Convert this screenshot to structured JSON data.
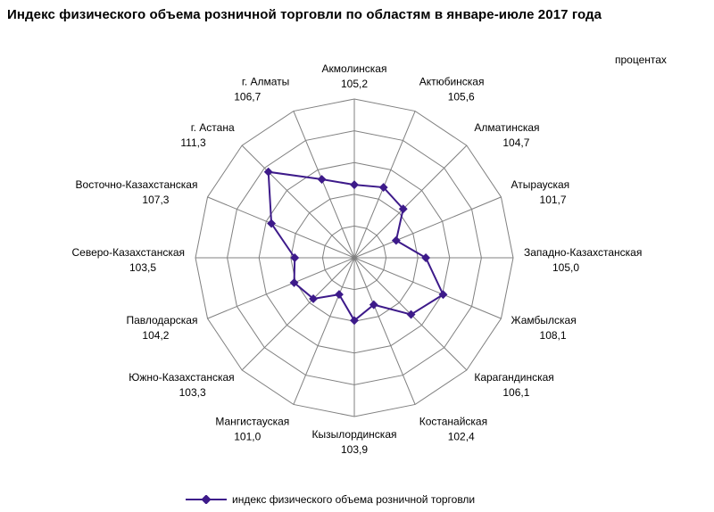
{
  "chart_data": {
    "type": "radar",
    "title": "Индекс физического объема розничной торговли по областям в январе-июле 2017 года",
    "unit": "процентах",
    "series": [
      {
        "name": "индекс физического объема розничной торговли",
        "color": "#3d1a8a",
        "values": [
          105.2,
          105.6,
          104.7,
          101.7,
          105.0,
          108.1,
          106.1,
          102.4,
          103.9,
          101.0,
          103.3,
          104.2,
          103.5,
          107.3,
          111.3,
          106.7
        ]
      }
    ],
    "categories": [
      "Акмолинская",
      "Актюбинская",
      "Алматинская",
      "Атырауская",
      "Западно-Казахстанская",
      "Жамбылская",
      "Карагандинская",
      "Костанайская",
      "Кызылординская",
      "Мангистауская",
      "Южно-Казахстанская",
      "Павлодарская",
      "Северо-Казахстанская",
      "Восточно-Казахстанская",
      "г. Астана",
      "г. Алматы"
    ],
    "value_labels": [
      "105,2",
      "105,6",
      "104,7",
      "101,7",
      "105,0",
      "108,1",
      "106,1",
      "102,4",
      "103,9",
      "101,0",
      "103,3",
      "104,2",
      "103,5",
      "107,3",
      "111,3",
      "106,7"
    ],
    "range": [
      96,
      116
    ],
    "grid_rings": 5,
    "legend_position": "bottom"
  }
}
